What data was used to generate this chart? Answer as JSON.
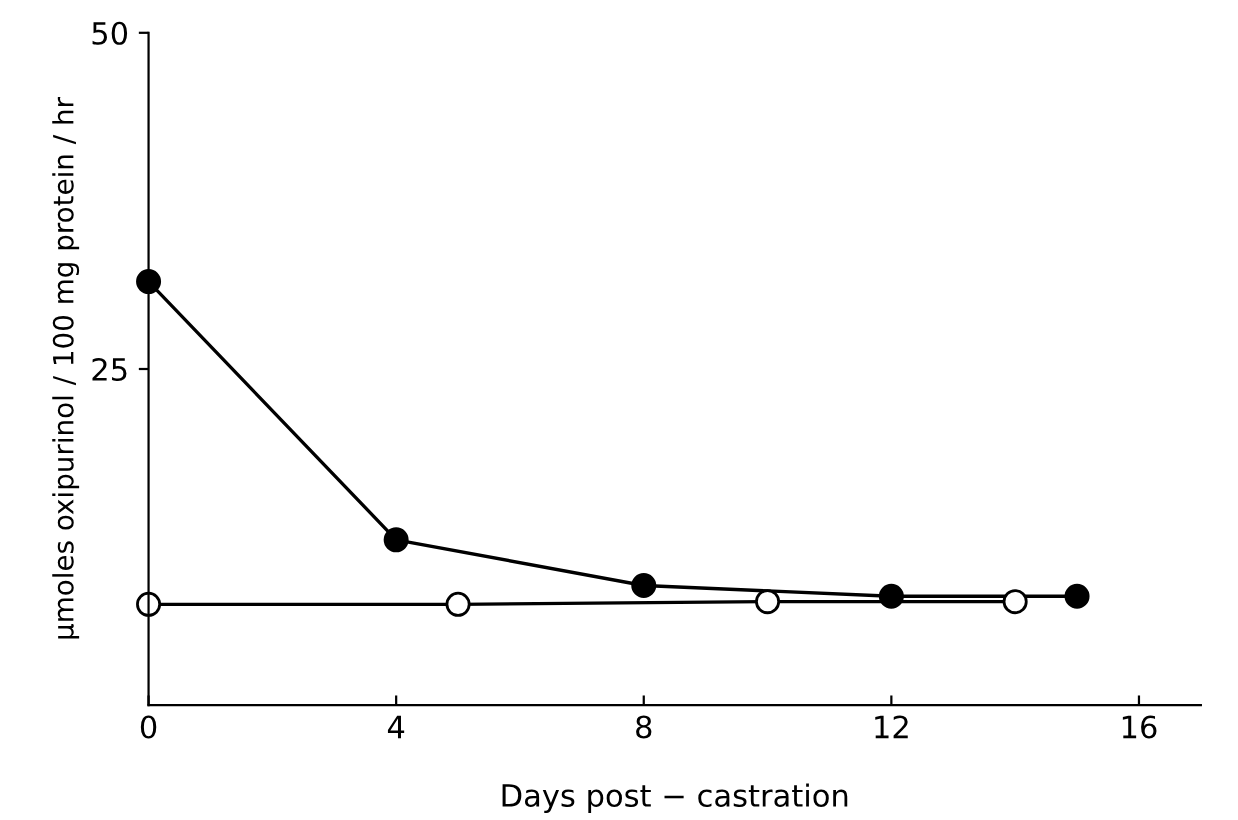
{
  "chart_data": {
    "type": "line",
    "xlabel": "Days post − castration",
    "ylabel": "μmoles oxipurinol / 100 mg protein / hr",
    "xlim": [
      0,
      17
    ],
    "ylim": [
      0,
      50
    ],
    "xticks": [
      0,
      4,
      8,
      12,
      16
    ],
    "yticks": [
      25,
      50
    ],
    "grid": false,
    "legend": false,
    "series": [
      {
        "color": "#000000",
        "marker": "filled_circle",
        "x": [
          0,
          4,
          8,
          12,
          15
        ],
        "values": [
          31.5,
          12.3,
          8.9,
          8.1,
          8.1
        ]
      },
      {
        "color": "#000000",
        "marker": "open_circle",
        "x": [
          0,
          5,
          10,
          14
        ],
        "values": [
          7.5,
          7.5,
          7.7,
          7.7
        ]
      }
    ]
  }
}
